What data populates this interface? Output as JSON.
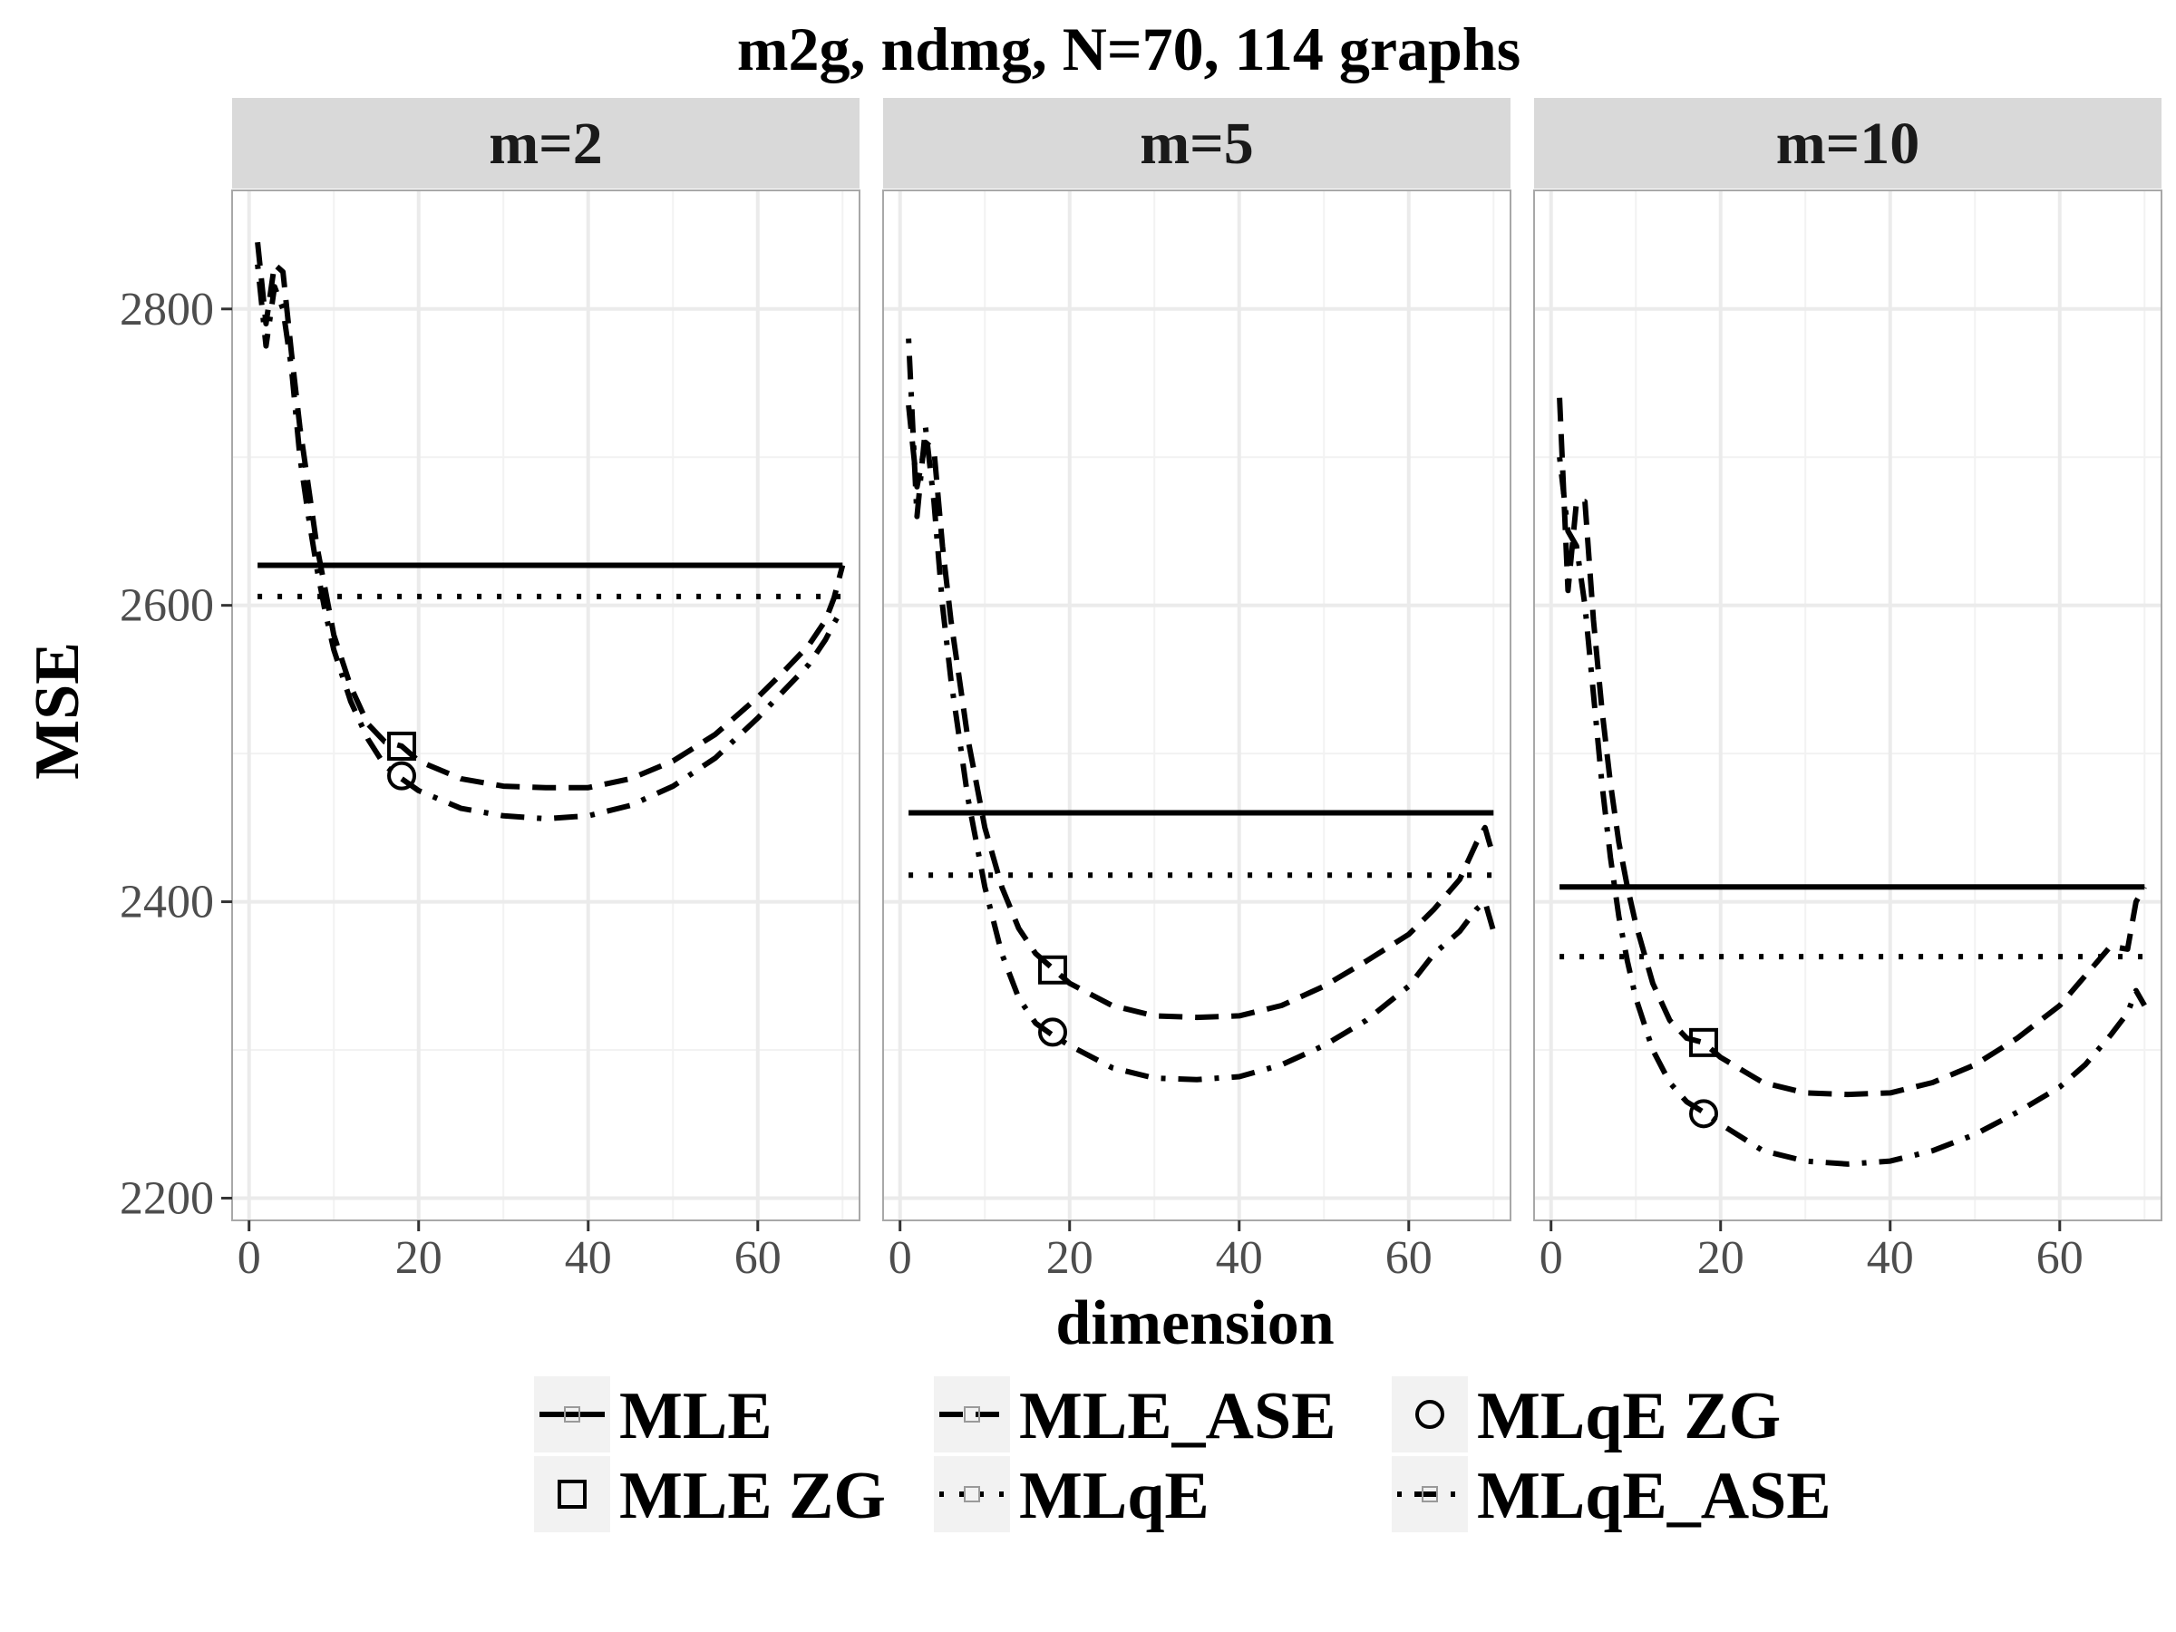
{
  "chart_data": {
    "type": "line",
    "title": "m2g, ndmg, N=70, 114 graphs",
    "xlabel": "dimension",
    "ylabel": "MSE",
    "xlim": [
      -2,
      72
    ],
    "ylim": [
      2185,
      2880
    ],
    "x_ticks": [
      0,
      20,
      40,
      60
    ],
    "y_ticks": [
      2200,
      2400,
      2600,
      2800
    ],
    "grid": true,
    "legend_position": "bottom",
    "legend": [
      {
        "label": "MLE",
        "key": "MLE",
        "linetype": "solid",
        "marker": "none"
      },
      {
        "label": "MLE ZG",
        "key": "MLE ZG",
        "linetype": "none",
        "marker": "square"
      },
      {
        "label": "MLE_ASE",
        "key": "MLE_ASE",
        "linetype": "dashed",
        "marker": "none"
      },
      {
        "label": "MLqE",
        "key": "MLqE",
        "linetype": "dotted",
        "marker": "none"
      },
      {
        "label": "MLqE ZG",
        "key": "MLqE ZG",
        "linetype": "none",
        "marker": "circle"
      },
      {
        "label": "MLqE_ASE",
        "key": "MLqE_ASE",
        "linetype": "dotdash",
        "marker": "none"
      }
    ],
    "panels": [
      {
        "strip": "m=2",
        "series": [
          {
            "key": "MLE",
            "x": [
              1,
              70
            ],
            "y": [
              2627,
              2627
            ]
          },
          {
            "key": "MLqE",
            "x": [
              1,
              70
            ],
            "y": [
              2606,
              2606
            ]
          },
          {
            "key": "MLE_ASE",
            "x": [
              1,
              2,
              3,
              4,
              5,
              6,
              7,
              8,
              9,
              10,
              12,
              14,
              16,
              18,
              20,
              25,
              30,
              35,
              40,
              45,
              50,
              55,
              60,
              63,
              66,
              68,
              69,
              70
            ],
            "y": [
              2845,
              2790,
              2830,
              2825,
              2770,
              2720,
              2680,
              2640,
              2610,
              2580,
              2545,
              2520,
              2508,
              2505,
              2495,
              2483,
              2478,
              2477,
              2477,
              2483,
              2495,
              2513,
              2538,
              2555,
              2573,
              2590,
              2605,
              2627
            ]
          },
          {
            "key": "MLqE_ASE",
            "x": [
              1,
              2,
              3,
              4,
              5,
              6,
              7,
              8,
              9,
              10,
              12,
              14,
              16,
              18,
              20,
              25,
              30,
              35,
              40,
              45,
              50,
              55,
              60,
              63,
              66,
              68,
              69,
              70
            ],
            "y": [
              2830,
              2775,
              2815,
              2800,
              2760,
              2700,
              2660,
              2625,
              2595,
              2570,
              2535,
              2510,
              2492,
              2483,
              2475,
              2463,
              2458,
              2456,
              2458,
              2465,
              2478,
              2497,
              2524,
              2542,
              2560,
              2577,
              2588,
              2598
            ]
          },
          {
            "key": "MLE ZG",
            "x": [
              18
            ],
            "y": [
              2505
            ]
          },
          {
            "key": "MLqE ZG",
            "x": [
              18
            ],
            "y": [
              2485
            ]
          }
        ]
      },
      {
        "strip": "m=5",
        "series": [
          {
            "key": "MLE",
            "x": [
              1,
              70
            ],
            "y": [
              2460,
              2460
            ]
          },
          {
            "key": "MLqE",
            "x": [
              1,
              70
            ],
            "y": [
              2418,
              2418
            ]
          },
          {
            "key": "MLE_ASE",
            "x": [
              1,
              2,
              3,
              4,
              5,
              6,
              7,
              8,
              9,
              10,
              12,
              14,
              16,
              18,
              20,
              25,
              30,
              35,
              40,
              45,
              50,
              55,
              60,
              63,
              66,
              68,
              69,
              70
            ],
            "y": [
              2735,
              2680,
              2710,
              2705,
              2640,
              2590,
              2550,
              2510,
              2480,
              2450,
              2410,
              2382,
              2365,
              2355,
              2345,
              2330,
              2323,
              2322,
              2323,
              2330,
              2343,
              2360,
              2378,
              2395,
              2415,
              2440,
              2450,
              2430
            ]
          },
          {
            "key": "MLqE_ASE",
            "x": [
              1,
              2,
              3,
              4,
              5,
              6,
              7,
              8,
              9,
              10,
              12,
              14,
              16,
              18,
              20,
              25,
              30,
              35,
              40,
              45,
              50,
              55,
              60,
              63,
              66,
              68,
              69,
              70
            ],
            "y": [
              2780,
              2660,
              2720,
              2670,
              2600,
              2550,
              2510,
              2470,
              2440,
              2410,
              2365,
              2335,
              2318,
              2310,
              2303,
              2288,
              2281,
              2280,
              2282,
              2290,
              2303,
              2320,
              2343,
              2365,
              2380,
              2395,
              2400,
              2380
            ]
          },
          {
            "key": "MLE ZG",
            "x": [
              18
            ],
            "y": [
              2354
            ]
          },
          {
            "key": "MLqE ZG",
            "x": [
              18
            ],
            "y": [
              2312
            ]
          }
        ]
      },
      {
        "strip": "m=10",
        "series": [
          {
            "key": "MLE",
            "x": [
              1,
              70
            ],
            "y": [
              2410,
              2410
            ]
          },
          {
            "key": "MLqE",
            "x": [
              1,
              70
            ],
            "y": [
              2363,
              2363
            ]
          },
          {
            "key": "MLE_ASE",
            "x": [
              1,
              2,
              3,
              4,
              5,
              6,
              7,
              8,
              9,
              10,
              12,
              14,
              16,
              18,
              20,
              25,
              30,
              35,
              40,
              45,
              50,
              55,
              60,
              63,
              66,
              68,
              69,
              70
            ],
            "y": [
              2740,
              2610,
              2670,
              2670,
              2590,
              2530,
              2480,
              2440,
              2410,
              2385,
              2345,
              2320,
              2308,
              2305,
              2295,
              2278,
              2271,
              2270,
              2271,
              2278,
              2290,
              2308,
              2330,
              2350,
              2370,
              2368,
              2400,
              2410
            ]
          },
          {
            "key": "MLqE_ASE",
            "x": [
              1,
              2,
              3,
              4,
              5,
              6,
              7,
              8,
              9,
              10,
              12,
              14,
              16,
              18,
              20,
              25,
              30,
              35,
              40,
              45,
              50,
              55,
              60,
              63,
              66,
              68,
              69,
              70
            ],
            "y": [
              2700,
              2650,
              2640,
              2600,
              2540,
              2480,
              2430,
              2390,
              2360,
              2335,
              2300,
              2278,
              2265,
              2258,
              2250,
              2232,
              2225,
              2223,
              2225,
              2232,
              2243,
              2258,
              2275,
              2290,
              2310,
              2325,
              2340,
              2330
            ]
          },
          {
            "key": "MLE ZG",
            "x": [
              18
            ],
            "y": [
              2305
            ]
          },
          {
            "key": "MLqE ZG",
            "x": [
              18
            ],
            "y": [
              2257
            ]
          }
        ]
      }
    ]
  }
}
